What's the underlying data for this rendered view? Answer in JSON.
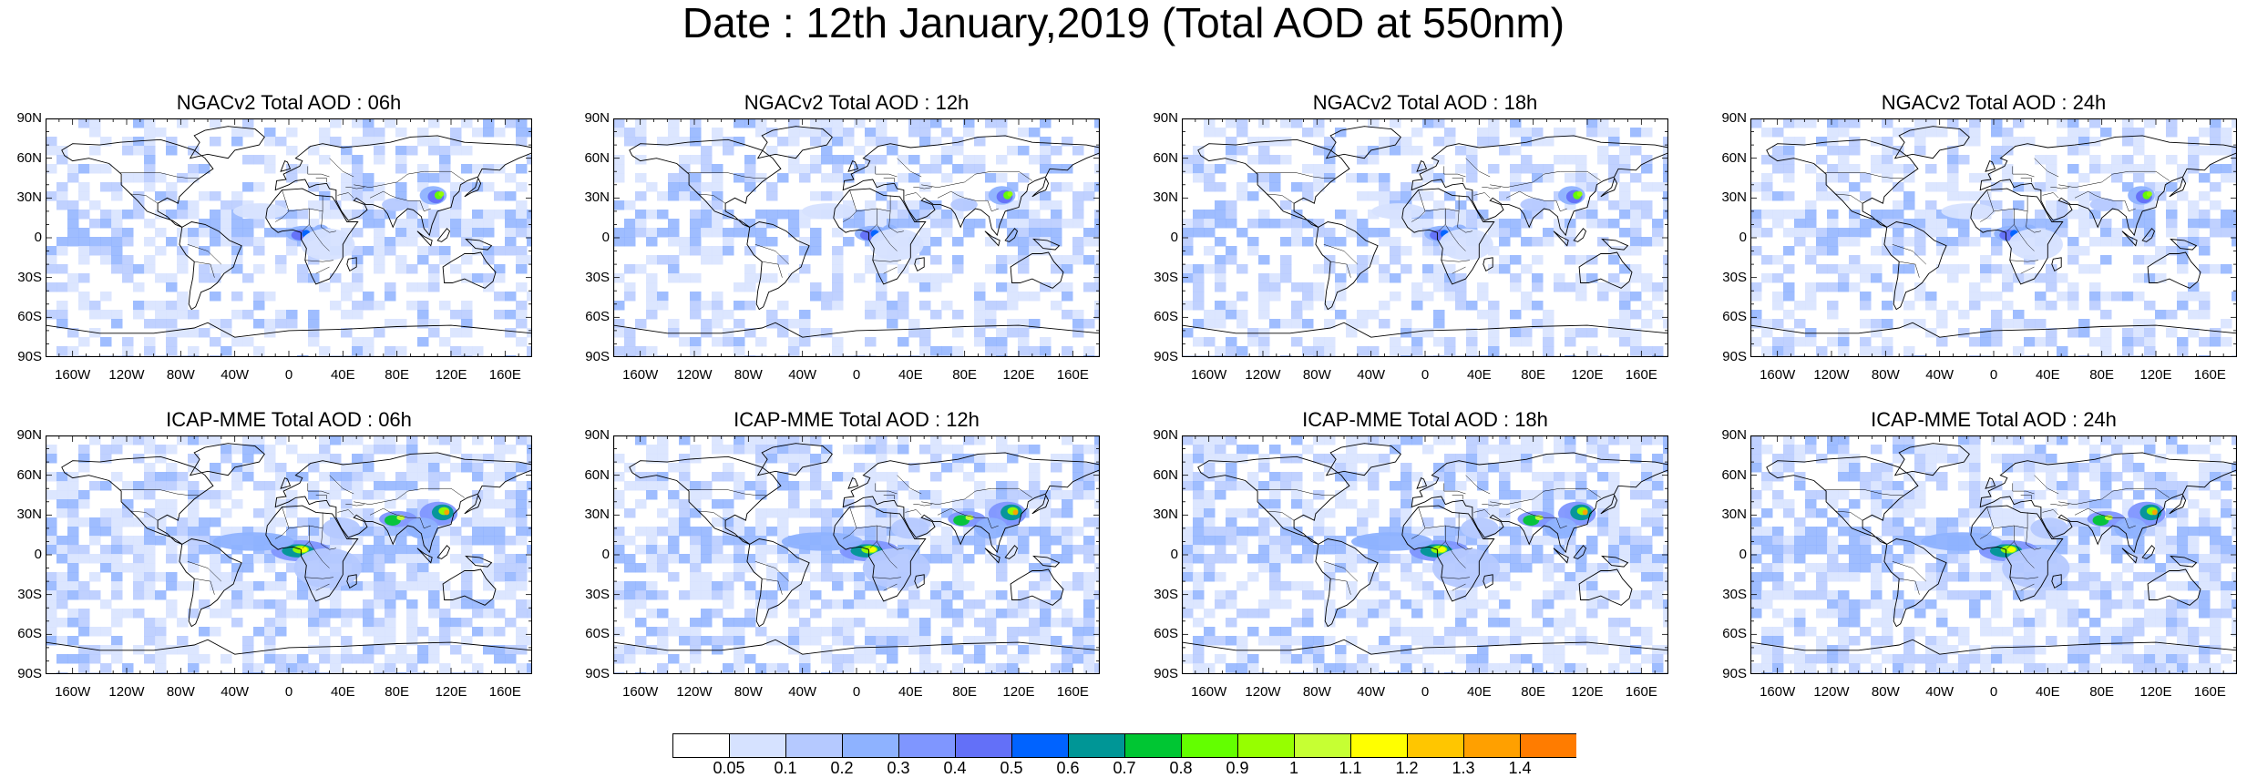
{
  "title": "Date : 12th January,2019 (Total AOD at 550nm)",
  "panels": [
    {
      "title": "NGACv2 Total AOD : 06h",
      "model": "ngac"
    },
    {
      "title": "NGACv2 Total AOD : 12h",
      "model": "ngac"
    },
    {
      "title": "NGACv2 Total AOD : 18h",
      "model": "ngac"
    },
    {
      "title": "NGACv2 Total AOD : 24h",
      "model": "ngac"
    },
    {
      "title": "ICAP-MME Total AOD : 06h",
      "model": "icap"
    },
    {
      "title": "ICAP-MME Total AOD : 12h",
      "model": "icap"
    },
    {
      "title": "ICAP-MME Total AOD : 18h",
      "model": "icap"
    },
    {
      "title": "ICAP-MME Total AOD : 24h",
      "model": "icap"
    }
  ],
  "lat_ticks": [
    "90N",
    "60N",
    "30N",
    "0",
    "30S",
    "60S",
    "90S"
  ],
  "lon_ticks": [
    "160W",
    "120W",
    "80W",
    "40W",
    "0",
    "40E",
    "80E",
    "120E",
    "160E"
  ],
  "colorbar": {
    "labels": [
      "0.05",
      "0.1",
      "0.2",
      "0.3",
      "0.4",
      "0.5",
      "0.6",
      "0.7",
      "0.8",
      "0.9",
      "1",
      "1.1",
      "1.2",
      "1.3",
      "1.4"
    ],
    "colors": [
      "#ffffff",
      "#d6e2ff",
      "#b5c9ff",
      "#8eb2ff",
      "#7f96ff",
      "#6370f8",
      "#0063ff",
      "#009696",
      "#00c633",
      "#63ff00",
      "#96ff00",
      "#c6ff33",
      "#ffff00",
      "#ffc600",
      "#ffa000",
      "#ff7c00",
      "#ff1900"
    ]
  }
}
